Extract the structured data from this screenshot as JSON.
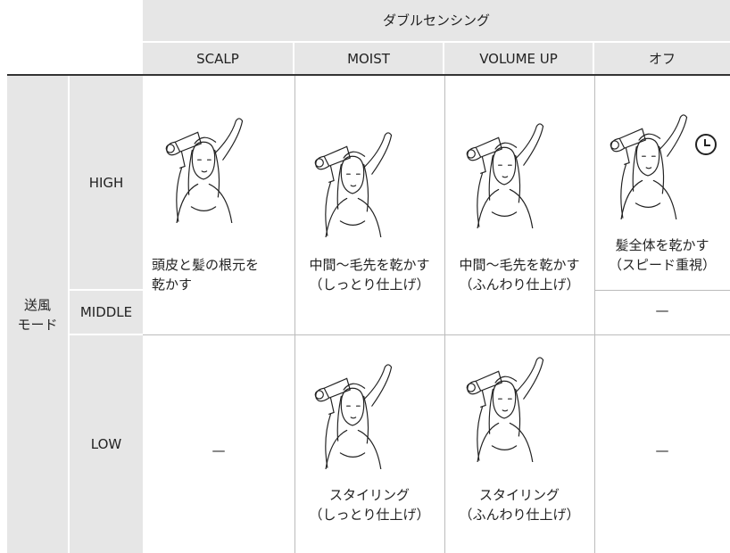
{
  "header": {
    "group": "ダブルセンシング",
    "columns": [
      "SCALP",
      "MOIST",
      "VOLUME UP",
      "オフ"
    ]
  },
  "row_group": [
    "送風",
    "モード"
  ],
  "row_labels": [
    "HIGH",
    "MIDDLE",
    "LOW"
  ],
  "cells": {
    "high_scalp": [
      "頭皮と髪の根元を",
      "乾かす"
    ],
    "high_moist": [
      "中間〜毛先を乾かす",
      "（しっとり仕上げ）"
    ],
    "high_volume": [
      "中間〜毛先を乾かす",
      "（ふんわり仕上げ）"
    ],
    "high_off": [
      "髪全体を乾かす",
      "（スピード重視）"
    ],
    "middle_off": [
      "—"
    ],
    "low_scalp": [
      "—"
    ],
    "low_moist": [
      "スタイリング",
      "（しっとり仕上げ）"
    ],
    "low_volume": [
      "スタイリング",
      "（ふんわり仕上げ）"
    ],
    "low_off": [
      "—"
    ]
  }
}
